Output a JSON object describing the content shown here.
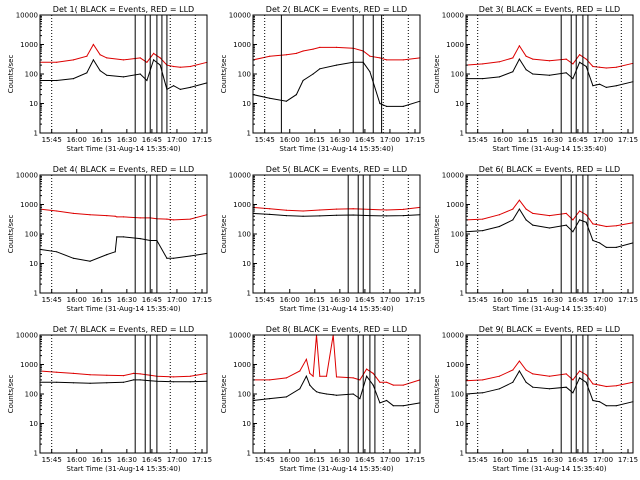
{
  "figure": {
    "shared": {
      "xlabel": "Start Time (31-Aug-14 15:35:40)",
      "ylabel": "Counts/sec",
      "xticks": [
        "15:45",
        "16:00",
        "16:15",
        "16:30",
        "16:45",
        "17:00",
        "17:15"
      ],
      "yticks": [
        "1",
        "10",
        "100",
        "1000",
        "10000"
      ]
    }
  },
  "chart_data": [
    {
      "type": "line",
      "title": "Det 1( BLACK = Events, RED = LLD",
      "xlabel": "Start Time (31-Aug-14 15:35:40)",
      "ylabel": "Counts/sec",
      "y_scale": "log",
      "ylim": [
        1,
        10000
      ],
      "xlim_minutes": [
        0,
        100
      ],
      "x_minutes": [
        0,
        10,
        20,
        28,
        32,
        36,
        40,
        50,
        60,
        64,
        68,
        72,
        76,
        80,
        84,
        90,
        100
      ],
      "series": [
        {
          "color": "#000000",
          "values": [
            60,
            60,
            70,
            110,
            300,
            130,
            90,
            80,
            100,
            60,
            300,
            200,
            30,
            40,
            30,
            35,
            50
          ]
        },
        {
          "color": "#dd0000",
          "values": [
            250,
            250,
            300,
            400,
            1000,
            450,
            350,
            300,
            350,
            250,
            500,
            350,
            200,
            180,
            170,
            180,
            250
          ]
        }
      ],
      "vlines_solid": [
        57,
        63,
        66,
        70,
        73,
        76
      ],
      "vlines_dotted": [
        7,
        78,
        93
      ]
    },
    {
      "type": "line",
      "title": "Det 2( BLACK = Events, RED = LLD",
      "xlabel": "Start Time (31-Aug-14 15:35:40)",
      "ylabel": "Counts/sec",
      "y_scale": "log",
      "ylim": [
        1,
        10000
      ],
      "xlim_minutes": [
        0,
        100
      ],
      "x_minutes": [
        0,
        10,
        20,
        26,
        30,
        36,
        40,
        50,
        60,
        66,
        70,
        76,
        80,
        90,
        100
      ],
      "series": [
        {
          "color": "#000000",
          "values": [
            20,
            15,
            12,
            20,
            60,
            100,
            150,
            200,
            250,
            250,
            120,
            10,
            8,
            8,
            12
          ]
        },
        {
          "color": "#dd0000",
          "values": [
            300,
            400,
            450,
            500,
            600,
            700,
            800,
            800,
            750,
            600,
            400,
            350,
            300,
            300,
            350
          ]
        }
      ],
      "vlines_solid": [
        17,
        60,
        66,
        72,
        77
      ],
      "vlines_dotted": [
        7,
        78,
        93
      ]
    },
    {
      "type": "line",
      "title": "Det 3( BLACK = Events, RED = LLD",
      "xlabel": "Start Time (31-Aug-14 15:35:40)",
      "ylabel": "Counts/sec",
      "y_scale": "log",
      "ylim": [
        1,
        10000
      ],
      "xlim_minutes": [
        0,
        100
      ],
      "x_minutes": [
        0,
        10,
        20,
        28,
        32,
        36,
        40,
        50,
        60,
        64,
        68,
        72,
        76,
        80,
        84,
        90,
        100
      ],
      "series": [
        {
          "color": "#000000",
          "values": [
            70,
            70,
            80,
            120,
            320,
            140,
            100,
            90,
            110,
            70,
            250,
            180,
            40,
            45,
            35,
            40,
            55
          ]
        },
        {
          "color": "#dd0000",
          "values": [
            200,
            220,
            260,
            350,
            900,
            400,
            320,
            280,
            320,
            220,
            450,
            320,
            180,
            170,
            160,
            170,
            230
          ]
        }
      ],
      "vlines_solid": [
        57,
        63,
        66,
        70,
        73
      ],
      "vlines_dotted": [
        7,
        78,
        93
      ]
    },
    {
      "type": "line",
      "title": "Det 4( BLACK = Events, RED = LLD",
      "xlabel": "Start Time (31-Aug-14 15:35:40)",
      "ylabel": "Counts/sec",
      "y_scale": "log",
      "ylim": [
        1,
        10000
      ],
      "xlim_minutes": [
        0,
        100
      ],
      "x_minutes": [
        0,
        10,
        20,
        30,
        40,
        45,
        46,
        50,
        60,
        66,
        70,
        76,
        80,
        90,
        100
      ],
      "series": [
        {
          "color": "#000000",
          "values": [
            30,
            25,
            15,
            12,
            20,
            25,
            80,
            80,
            70,
            60,
            60,
            15,
            15,
            18,
            22
          ]
        },
        {
          "color": "#dd0000",
          "values": [
            700,
            600,
            500,
            450,
            420,
            400,
            380,
            380,
            350,
            350,
            330,
            320,
            300,
            320,
            450
          ]
        }
      ],
      "vlines_solid": [
        57,
        63,
        66,
        70
      ],
      "vlines_dotted": [
        7,
        78,
        93
      ]
    },
    {
      "type": "line",
      "title": "Det 5( BLACK = Events, RED = LLD",
      "xlabel": "Start Time (31-Aug-14 15:35:40)",
      "ylabel": "Counts/sec",
      "y_scale": "log",
      "ylim": [
        1,
        10000
      ],
      "xlim_minutes": [
        0,
        100
      ],
      "x_minutes": [
        0,
        10,
        20,
        30,
        40,
        50,
        60,
        70,
        80,
        90,
        100
      ],
      "series": [
        {
          "color": "#000000",
          "values": [
            500,
            460,
            420,
            400,
            410,
            430,
            440,
            420,
            410,
            420,
            450
          ]
        },
        {
          "color": "#dd0000",
          "values": [
            800,
            720,
            640,
            600,
            650,
            700,
            720,
            680,
            650,
            680,
            800
          ]
        }
      ],
      "vlines_solid": [
        57,
        63,
        66,
        70
      ],
      "vlines_dotted": [
        7,
        78,
        93
      ]
    },
    {
      "type": "line",
      "title": "Det 6( BLACK = Events, RED = LLD",
      "xlabel": "Start Time (31-Aug-14 15:35:40)",
      "ylabel": "Counts/sec",
      "y_scale": "log",
      "ylim": [
        1,
        10000
      ],
      "xlim_minutes": [
        0,
        100
      ],
      "x_minutes": [
        0,
        10,
        20,
        28,
        32,
        36,
        40,
        50,
        60,
        64,
        68,
        72,
        76,
        80,
        84,
        90,
        100
      ],
      "series": [
        {
          "color": "#000000",
          "values": [
            120,
            130,
            180,
            300,
            700,
            300,
            200,
            160,
            200,
            120,
            300,
            250,
            60,
            50,
            35,
            35,
            50
          ]
        },
        {
          "color": "#dd0000",
          "values": [
            300,
            320,
            450,
            700,
            1400,
            700,
            500,
            420,
            500,
            300,
            600,
            450,
            220,
            200,
            180,
            190,
            240
          ]
        }
      ],
      "vlines_solid": [
        57,
        63,
        66,
        70,
        73
      ],
      "vlines_dotted": [
        7,
        78,
        93
      ]
    },
    {
      "type": "line",
      "title": "Det 7( BLACK = Events, RED = LLD",
      "xlabel": "Start Time (31-Aug-14 15:35:40)",
      "ylabel": "Counts/sec",
      "y_scale": "log",
      "ylim": [
        1,
        10000
      ],
      "xlim_minutes": [
        0,
        100
      ],
      "x_minutes": [
        0,
        10,
        20,
        30,
        40,
        50,
        56,
        60,
        66,
        70,
        80,
        90,
        100
      ],
      "series": [
        {
          "color": "#000000",
          "values": [
            250,
            250,
            240,
            230,
            240,
            250,
            300,
            300,
            280,
            270,
            260,
            260,
            270
          ]
        },
        {
          "color": "#dd0000",
          "values": [
            600,
            550,
            500,
            450,
            430,
            420,
            500,
            480,
            430,
            400,
            380,
            400,
            500
          ]
        }
      ],
      "vlines_solid": [
        57,
        63,
        66,
        70
      ],
      "vlines_dotted": [
        7,
        78,
        93
      ]
    },
    {
      "type": "line",
      "title": "Det 8( BLACK = Events, RED = LLD",
      "xlabel": "Start Time (31-Aug-14 15:35:40)",
      "ylabel": "Counts/sec",
      "y_scale": "log",
      "ylim": [
        1,
        10000
      ],
      "xlim_minutes": [
        0,
        100
      ],
      "x_minutes": [
        0,
        10,
        20,
        28,
        32,
        34,
        36,
        38,
        40,
        44,
        48,
        50,
        60,
        64,
        68,
        72,
        76,
        80,
        84,
        90,
        100
      ],
      "series": [
        {
          "color": "#000000",
          "values": [
            60,
            70,
            80,
            150,
            400,
            200,
            150,
            120,
            110,
            100,
            95,
            90,
            100,
            70,
            400,
            200,
            50,
            60,
            40,
            40,
            50
          ]
        },
        {
          "color": "#dd0000",
          "values": [
            300,
            300,
            350,
            600,
            1500,
            500,
            400,
            10000,
            400,
            400,
            10000,
            380,
            350,
            300,
            700,
            500,
            250,
            250,
            200,
            200,
            300
          ]
        }
      ],
      "vlines_solid": [
        57,
        63,
        66,
        70,
        73
      ],
      "vlines_dotted": [
        7,
        78,
        93
      ]
    },
    {
      "type": "line",
      "title": "Det 9( BLACK = Events, RED = LLD",
      "xlabel": "Start Time (31-Aug-14 15:35:40)",
      "ylabel": "Counts/sec",
      "y_scale": "log",
      "ylim": [
        1,
        10000
      ],
      "xlim_minutes": [
        0,
        100
      ],
      "x_minutes": [
        0,
        10,
        20,
        28,
        32,
        36,
        40,
        50,
        60,
        64,
        68,
        72,
        76,
        80,
        84,
        90,
        100
      ],
      "series": [
        {
          "color": "#000000",
          "values": [
            100,
            110,
            150,
            250,
            600,
            250,
            170,
            150,
            170,
            110,
            350,
            250,
            60,
            55,
            40,
            40,
            55
          ]
        },
        {
          "color": "#dd0000",
          "values": [
            280,
            300,
            400,
            650,
            1300,
            650,
            480,
            400,
            480,
            300,
            600,
            450,
            220,
            200,
            180,
            190,
            250
          ]
        }
      ],
      "vlines_solid": [
        57,
        63,
        66,
        70,
        73
      ],
      "vlines_dotted": [
        7,
        78,
        93
      ]
    }
  ]
}
